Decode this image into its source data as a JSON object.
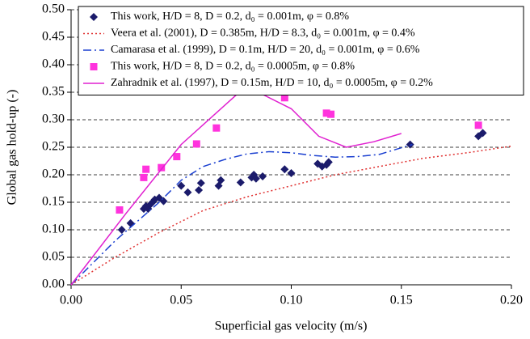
{
  "chart_data": {
    "type": "scatter-line",
    "x_label": "Superficial gas velocity (m/s)",
    "y_label": "Global gas hold-up (-)",
    "xlim": [
      0,
      0.2
    ],
    "ylim": [
      0,
      0.5
    ],
    "xticks": [
      {
        "value": 0,
        "label": "0.00"
      },
      {
        "value": 0.05,
        "label": "0.05"
      },
      {
        "value": 0.1,
        "label": "0.10"
      },
      {
        "value": 0.15,
        "label": "0.15"
      },
      {
        "value": 0.2,
        "label": "0.20"
      }
    ],
    "yticks": [
      {
        "value": 0,
        "label": "0.00"
      },
      {
        "value": 0.05,
        "label": "0.05"
      },
      {
        "value": 0.1,
        "label": "0.10"
      },
      {
        "value": 0.15,
        "label": "0.15"
      },
      {
        "value": 0.2,
        "label": "0.20"
      },
      {
        "value": 0.25,
        "label": "0.25"
      },
      {
        "value": 0.3,
        "label": "0.30"
      },
      {
        "value": 0.35,
        "label": "0.35"
      },
      {
        "value": 0.4,
        "label": "0.40"
      },
      {
        "value": 0.45,
        "label": "0.45"
      },
      {
        "value": 0.5,
        "label": "0.50"
      }
    ],
    "grid": true,
    "legend": "top",
    "series": [
      {
        "name": "This work, H/D = 8, D = 0.2, d₀ = 0.001m, φ = 0.8%",
        "color": "#1b1b6b",
        "mode": "markers",
        "marker": "diamond",
        "x": [
          0.023,
          0.027,
          0.033,
          0.034,
          0.035,
          0.036,
          0.037,
          0.038,
          0.04,
          0.042,
          0.05,
          0.053,
          0.058,
          0.059,
          0.067,
          0.068,
          0.077,
          0.082,
          0.083,
          0.084,
          0.087,
          0.097,
          0.1,
          0.112,
          0.114,
          0.116,
          0.117,
          0.154,
          0.185,
          0.187
        ],
        "values": [
          0.1,
          0.112,
          0.138,
          0.143,
          0.138,
          0.146,
          0.15,
          0.155,
          0.158,
          0.152,
          0.18,
          0.168,
          0.172,
          0.185,
          0.18,
          0.19,
          0.186,
          0.195,
          0.2,
          0.193,
          0.197,
          0.21,
          0.203,
          0.22,
          0.215,
          0.218,
          0.223,
          0.255,
          0.27,
          0.276
        ]
      },
      {
        "name": "Veera et al. (2001), D = 0.385m, H/D = 8.3, d₀ = 0.001m, φ = 0.4%",
        "color": "#e03030",
        "mode": "line",
        "dash": "2,3",
        "x": [
          0,
          0.02,
          0.04,
          0.06,
          0.08,
          0.1,
          0.12,
          0.14,
          0.16,
          0.18,
          0.2
        ],
        "values": [
          0,
          0.05,
          0.095,
          0.135,
          0.16,
          0.18,
          0.2,
          0.215,
          0.23,
          0.24,
          0.252
        ]
      },
      {
        "name": "Camarasa et al. (1999), D = 0.1m, H/D = 20, d₀ = 0.001m, φ = 0.6%",
        "color": "#1a3fd0",
        "mode": "line",
        "dash": "10,4,2,4",
        "x": [
          0,
          0.02,
          0.04,
          0.05,
          0.06,
          0.07,
          0.08,
          0.09,
          0.1,
          0.11,
          0.12,
          0.13,
          0.14,
          0.155
        ],
        "values": [
          0,
          0.08,
          0.15,
          0.19,
          0.215,
          0.228,
          0.238,
          0.242,
          0.24,
          0.235,
          0.232,
          0.233,
          0.237,
          0.255
        ]
      },
      {
        "name": "This work, H/D = 8, D = 0.2, d₀ = 0.0005m, φ = 0.8%",
        "color": "#ff33dd",
        "mode": "markers",
        "marker": "square",
        "x": [
          0.022,
          0.033,
          0.034,
          0.041,
          0.048,
          0.057,
          0.066,
          0.083,
          0.097,
          0.116,
          0.118,
          0.185
        ],
        "values": [
          0.136,
          0.195,
          0.21,
          0.213,
          0.233,
          0.256,
          0.285,
          0.351,
          0.34,
          0.312,
          0.31,
          0.29
        ]
      },
      {
        "name": "Zahradnik et al. (1997), D = 0.15m, H/D = 10, d₀ = 0.0005m, φ = 0.2%",
        "color": "#e020d0",
        "mode": "line",
        "dash": "none",
        "x": [
          0,
          0.025,
          0.05,
          0.075,
          0.085,
          0.1,
          0.1125,
          0.125,
          0.1375,
          0.15
        ],
        "values": [
          0,
          0.13,
          0.255,
          0.345,
          0.35,
          0.32,
          0.27,
          0.25,
          0.26,
          0.275
        ]
      }
    ]
  }
}
